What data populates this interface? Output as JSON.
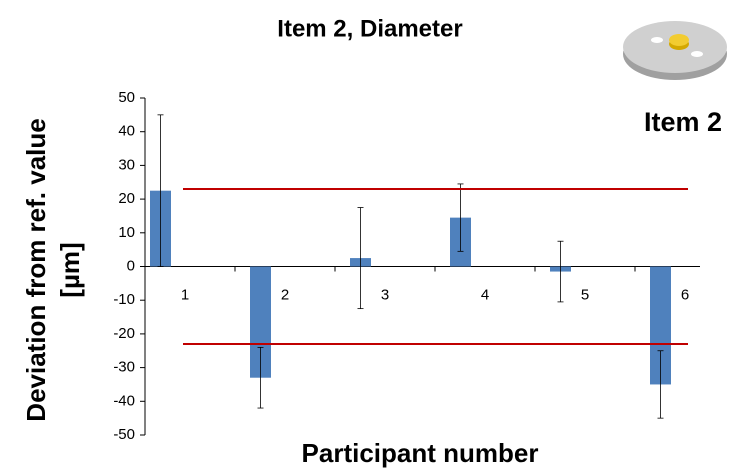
{
  "chart_data": {
    "type": "bar",
    "title": "Item 2, Diameter",
    "item_label": "Item 2",
    "xlabel": "Participant number",
    "ylabel": [
      "Deviation from ref. value",
      "[µm]"
    ],
    "categories": [
      "1",
      "2",
      "3",
      "4",
      "5",
      "6"
    ],
    "values": [
      22.5,
      -33,
      2.5,
      14.5,
      -1.5,
      -35
    ],
    "errors": [
      22.5,
      9,
      15,
      10,
      9,
      10
    ],
    "color": "#4f81bd",
    "limits": [
      23,
      -23
    ],
    "limit_color": "#c00000",
    "ylim": [
      -50,
      50
    ],
    "yticks": [
      -50,
      -40,
      -30,
      -20,
      -10,
      0,
      10,
      20,
      30,
      40,
      50
    ]
  }
}
